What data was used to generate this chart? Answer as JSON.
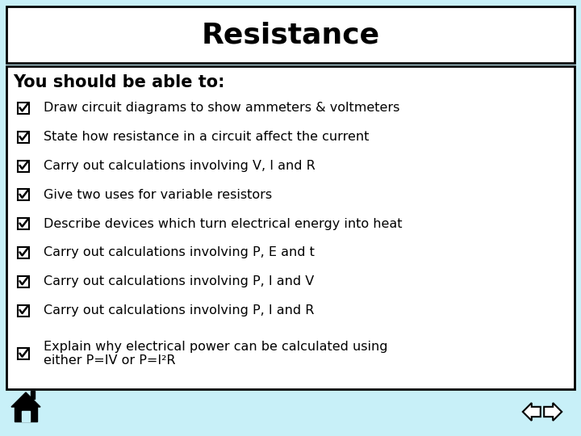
{
  "title": "Resistance",
  "background_color": "#c8f0f8",
  "title_box_bg": "#ffffff",
  "content_box_bg": "#ffffff",
  "title_fontsize": 26,
  "subtitle": "You should be able to:",
  "subtitle_fontsize": 15,
  "items": [
    "Draw circuit diagrams to show ammeters & voltmeters",
    "State how resistance in a circuit affect the current",
    "Carry out calculations involving V, I and R",
    "Give two uses for variable resistors",
    "Describe devices which turn electrical energy into heat",
    "Carry out calculations involving P, E and t",
    "Carry out calculations involving P, I and V",
    "Carry out calculations involving P, I and R",
    "Explain why electrical power can be calculated using\neither P=IV or P=I²R"
  ],
  "item_fontsize": 11.5,
  "text_color": "#000000",
  "bg": "#c8f0f8"
}
